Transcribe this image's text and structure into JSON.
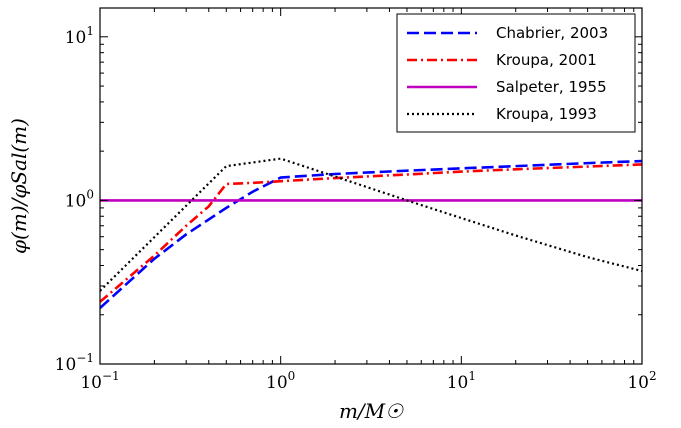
{
  "chart_data": {
    "type": "line",
    "xscale": "log",
    "yscale": "log",
    "xlim": [
      0.1,
      100
    ],
    "ylim": [
      0.1,
      15
    ],
    "xlabel": "m/M☉",
    "ylabel": "φ(m)/φSal(m)",
    "x_ticks": [
      {
        "base": "10",
        "exp": "−1"
      },
      {
        "base": "10",
        "exp": "0"
      },
      {
        "base": "10",
        "exp": "1"
      },
      {
        "base": "10",
        "exp": "2"
      }
    ],
    "y_ticks": [
      {
        "base": "10",
        "exp": "−1"
      },
      {
        "base": "10",
        "exp": "0"
      },
      {
        "base": "10",
        "exp": "1"
      }
    ],
    "legend_position": "top-right",
    "grid": false,
    "series": [
      {
        "name": "Chabrier, 2003",
        "color": "#0000ff",
        "dash": "dashed",
        "x": [
          0.1,
          0.15,
          0.2,
          0.3,
          0.5,
          0.7,
          1.0,
          2.0,
          5.0,
          10,
          20,
          50,
          100
        ],
        "y": [
          0.22,
          0.33,
          0.44,
          0.62,
          0.9,
          1.13,
          1.38,
          1.45,
          1.52,
          1.57,
          1.62,
          1.69,
          1.74
        ]
      },
      {
        "name": "Kroupa, 2001",
        "color": "#ff0000",
        "dash": "dashdot",
        "x": [
          0.1,
          0.2,
          0.3,
          0.4,
          0.5,
          0.7,
          1.0,
          2.0,
          5.0,
          10,
          20,
          50,
          100
        ],
        "y": [
          0.24,
          0.46,
          0.7,
          0.92,
          1.26,
          1.28,
          1.31,
          1.37,
          1.44,
          1.5,
          1.55,
          1.61,
          1.66
        ]
      },
      {
        "name": "Salpeter, 1955",
        "color": "#bf00bf",
        "dash": "solid",
        "x": [
          0.1,
          100
        ],
        "y": [
          1.0,
          1.0
        ]
      },
      {
        "name": "Kroupa, 1993",
        "color": "#000000",
        "dash": "dotted",
        "x": [
          0.1,
          0.5,
          1.0,
          2.0,
          5.0,
          10,
          20,
          50,
          100
        ],
        "y": [
          0.28,
          1.62,
          1.8,
          1.4,
          1.0,
          0.78,
          0.61,
          0.45,
          0.37
        ]
      }
    ]
  }
}
